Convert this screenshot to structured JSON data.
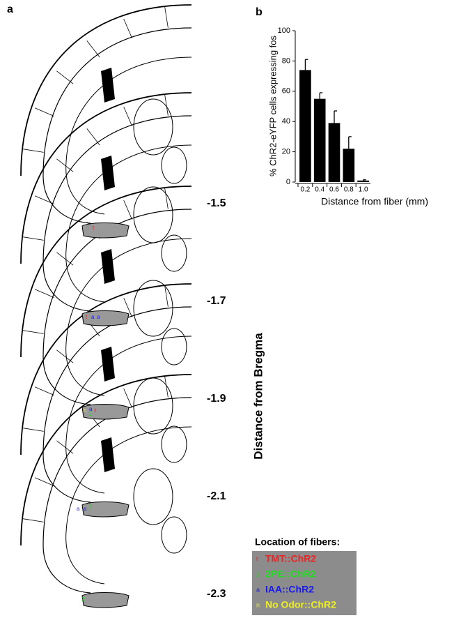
{
  "panel_a": {
    "label": "a",
    "axis_title": "Distance from Bregma",
    "sections": [
      "-1.5",
      "-1.7",
      "-1.9",
      "-2.1",
      "-2.3"
    ],
    "legend": {
      "title": "Location of fibers:",
      "items": [
        {
          "marker": "t",
          "name": "TMT::ChR2",
          "color": "#ee2222"
        },
        {
          "marker": "2",
          "name": "2PE::ChR2",
          "color": "#22dd22"
        },
        {
          "marker": "a",
          "name": "IAA::ChR2",
          "color": "#1a1aee"
        },
        {
          "marker": "n",
          "name": "No Odor::ChR2",
          "color": "#eeee22"
        }
      ]
    }
  },
  "chart_data": {
    "type": "bar",
    "panel_label": "b",
    "x_label": "Distance from fiber (mm)",
    "y_label": "% ChR2-eYFP cells expressing fos",
    "categories": [
      "0.2",
      "0.4",
      "0.6",
      "0.8",
      "1.0"
    ],
    "values": [
      74,
      55,
      39,
      22,
      1
    ],
    "errors": [
      7,
      4,
      8,
      8,
      0.5
    ],
    "color": "#000000",
    "ylim": [
      0,
      100
    ],
    "yticks": [
      0,
      20,
      40,
      60,
      80,
      100
    ]
  }
}
